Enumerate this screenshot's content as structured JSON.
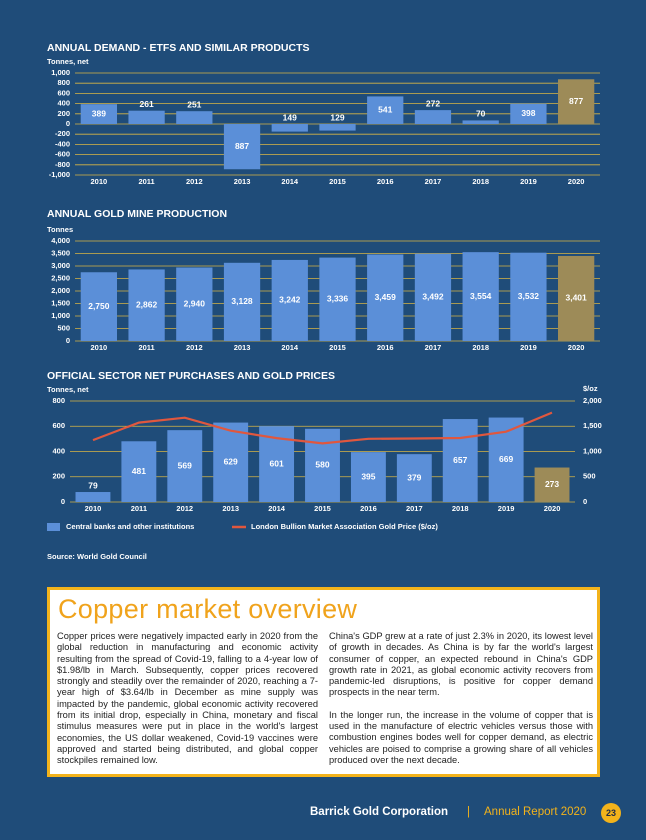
{
  "chart_data": [
    {
      "type": "bar",
      "title": "ANNUAL DEMAND - ETFS AND SIMILAR PRODUCTS",
      "y_label": "Tonnes, net",
      "categories": [
        "2010",
        "2011",
        "2012",
        "2013",
        "2014",
        "2015",
        "2016",
        "2017",
        "2018",
        "2019",
        "2020"
      ],
      "values": [
        389,
        261,
        251,
        -887,
        -149,
        -129,
        541,
        272,
        70,
        398,
        877
      ],
      "value_labels": [
        "389",
        "261",
        "251",
        "887",
        "149",
        "129",
        "541",
        "272",
        "70",
        "398",
        "877"
      ],
      "colors": [
        "#5b8fd8",
        "#5b8fd8",
        "#5b8fd8",
        "#5b8fd8",
        "#5b8fd8",
        "#5b8fd8",
        "#5b8fd8",
        "#5b8fd8",
        "#5b8fd8",
        "#5b8fd8",
        "#9d8b58"
      ],
      "ylim": [
        -1000,
        1000
      ],
      "yticks": [
        {
          "value": 1000,
          "label": "1,000"
        },
        800,
        600,
        400,
        200,
        0,
        -200,
        -400,
        -600,
        -800,
        {
          "value": -1000,
          "label": "-1,000"
        }
      ],
      "grid": true,
      "grid_color": "#d8b544"
    },
    {
      "type": "bar",
      "title": "ANNUAL GOLD MINE PRODUCTION",
      "y_label": "Tonnes",
      "categories": [
        "2010",
        "2011",
        "2012",
        "2013",
        "2014",
        "2015",
        "2016",
        "2017",
        "2018",
        "2019",
        "2020"
      ],
      "values": [
        2750,
        2862,
        2940,
        3128,
        3242,
        3336,
        3459,
        3492,
        3554,
        3532,
        3401
      ],
      "value_labels": [
        "2,750",
        "2,862",
        "2,940",
        "3,128",
        "3,242",
        "3,336",
        "3,459",
        "3,492",
        "3,554",
        "3,532",
        "3,401"
      ],
      "colors": [
        "#5b8fd8",
        "#5b8fd8",
        "#5b8fd8",
        "#5b8fd8",
        "#5b8fd8",
        "#5b8fd8",
        "#5b8fd8",
        "#5b8fd8",
        "#5b8fd8",
        "#5b8fd8",
        "#9d8b58"
      ],
      "ylim": [
        0,
        4000
      ],
      "yticks": [
        {
          "value": 4000,
          "label": "4,000"
        },
        {
          "value": 3500,
          "label": "3,500"
        },
        {
          "value": 3000,
          "label": "3,000"
        },
        {
          "value": 2500,
          "label": "2,500"
        },
        {
          "value": 2000,
          "label": "2,000"
        },
        {
          "value": 1500,
          "label": "1,500"
        },
        {
          "value": 1000,
          "label": "1,000"
        },
        500,
        0
      ],
      "grid": true,
      "grid_color": "#d8b544"
    },
    {
      "type": "combo",
      "title": "OFFICIAL SECTOR NET PURCHASES AND GOLD PRICES",
      "y_label": "Tonnes, net",
      "y2_label": "$/oz",
      "categories": [
        "2010",
        "2011",
        "2012",
        "2013",
        "2014",
        "2015",
        "2016",
        "2017",
        "2018",
        "2019",
        "2020"
      ],
      "series": [
        {
          "name": "Central banks and other institutions",
          "color": "#5b8fd8",
          "colors": [
            "#5b8fd8",
            "#5b8fd8",
            "#5b8fd8",
            "#5b8fd8",
            "#5b8fd8",
            "#5b8fd8",
            "#5b8fd8",
            "#5b8fd8",
            "#5b8fd8",
            "#5b8fd8",
            "#9d8b58"
          ],
          "values": [
            79,
            481,
            569,
            629,
            601,
            580,
            395,
            379,
            657,
            669,
            273
          ]
        },
        {
          "name": "London Bullion Market Association Gold Price ($/oz)",
          "color": "#e0573e",
          "axis": "y2",
          "values": [
            1225,
            1572,
            1669,
            1411,
            1266,
            1160,
            1251,
            1257,
            1268,
            1393,
            1770
          ]
        }
      ],
      "ylim": [
        0,
        800
      ],
      "yticks": [
        800,
        600,
        400,
        200,
        0
      ],
      "y2lim": [
        0,
        2000
      ],
      "y2ticks": [
        {
          "value": 2000,
          "label": "2,000"
        },
        {
          "value": 1500,
          "label": "1,500"
        },
        {
          "value": 1000,
          "label": "1,000"
        },
        500,
        0
      ],
      "grid": true,
      "grid_color": "#d8b544"
    }
  ],
  "source": "Source: World Gold Council",
  "article": {
    "title": "Copper market overview",
    "left": [
      "Copper prices were negatively impacted early in 2020 from the global reduction in manufacturing and economic activity resulting from the spread of Covid-19, falling to a 4-year low of $1.98/lb in March.  Subsequently, copper prices recovered strongly and steadily over the remainder of 2020, reaching a 7-year high of $3.64/lb in December as mine supply was impacted by the pandemic, global economic activity recovered from its initial drop, especially in China, monetary and fiscal stimulus measures were put in place in the world's largest economies, the US dollar weakened, Covid-19 vaccines were approved and started being distributed, and global copper stockpiles remained low."
    ],
    "right": [
      "China's GDP grew at a rate of just 2.3% in 2020, its lowest level of growth in decades.  As China is by far the world's largest consumer of copper, an expected rebound in China's GDP growth rate in 2021, as global economic activity recovers from pandemic-led disruptions, is positive for copper demand prospects in the near term.",
      "In the longer run, the increase in the volume of copper that is used in the manufacture of electric vehicles versus those with combustion engines bodes well for copper demand, as electric vehicles are poised to comprise a growing share of all vehicles produced over the next decade."
    ]
  },
  "footer": {
    "company": "Barrick Gold Corporation",
    "separator": "|",
    "report": "Annual Report 2020",
    "page": "23"
  }
}
